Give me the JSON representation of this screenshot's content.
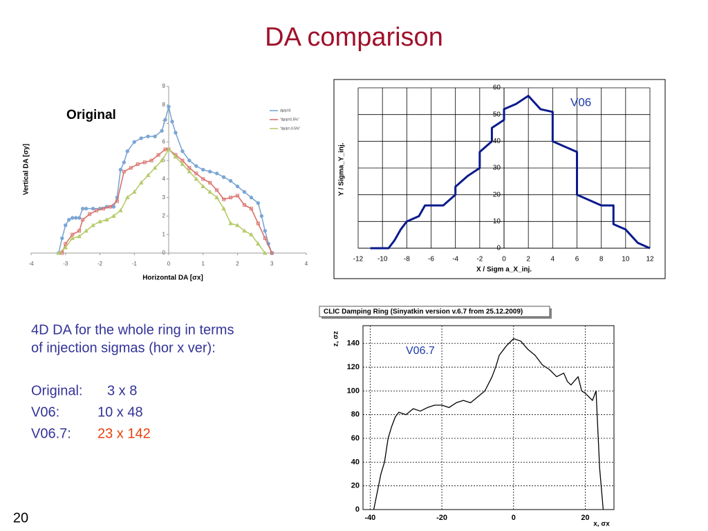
{
  "title": "DA comparison",
  "label_original": "Original",
  "text": {
    "intro": [
      "4D DA for the whole ring in terms",
      "of injection sigmas (hor x ver):"
    ],
    "results": [
      {
        "label": "Original:",
        "value": "3 x 8"
      },
      {
        "label": "V06:",
        "value": "10 x 48"
      },
      {
        "label": "V06.7:",
        "value": "23 x 142",
        "color": "#e8400c"
      }
    ]
  },
  "page_number": "20",
  "chart_data": [
    {
      "type": "line",
      "xlabel": "Horizontal DA [σx]",
      "ylabel": "Vertical DA [σy]",
      "xlim": [
        -4,
        4
      ],
      "ylim": [
        0,
        9
      ],
      "xticks": [
        -4,
        -3,
        -2,
        -1,
        0,
        1,
        2,
        3,
        4
      ],
      "yticks": [
        0,
        1,
        2,
        3,
        4,
        5,
        6,
        7,
        8,
        9
      ],
      "grid": false,
      "series": [
        {
          "name": "dp/p=0",
          "color": "#7ba6d4",
          "marker": "circle",
          "x": [
            -3.2,
            -3.1,
            -3.0,
            -2.9,
            -2.8,
            -2.7,
            -2.6,
            -2.5,
            -2.4,
            -2.2,
            -2.0,
            -1.8,
            -1.6,
            -1.5,
            -1.4,
            -1.3,
            -1.2,
            -1.0,
            -0.8,
            -0.6,
            -0.4,
            -0.2,
            -0.1,
            0,
            0.1,
            0.2,
            0.4,
            0.6,
            0.8,
            1.0,
            1.2,
            1.4,
            1.6,
            1.8,
            2.0,
            2.2,
            2.4,
            2.6,
            2.7,
            2.8,
            2.9,
            3.0
          ],
          "values": [
            0,
            0.8,
            1.5,
            1.8,
            1.9,
            1.9,
            1.9,
            2.4,
            2.4,
            2.4,
            2.4,
            2.5,
            2.5,
            3.0,
            4.5,
            4.9,
            5.5,
            6.0,
            6.2,
            6.3,
            6.3,
            6.6,
            7.2,
            7.9,
            7.1,
            6.5,
            5.5,
            5.0,
            4.7,
            4.5,
            4.4,
            4.3,
            4.1,
            3.9,
            3.6,
            3.3,
            3.0,
            2.7,
            2.0,
            1.2,
            0.5,
            0
          ]
        },
        {
          "name": "\"dp/p=0.5%\"",
          "color": "#d9706a",
          "marker": "square",
          "x": [
            -3.1,
            -3.0,
            -2.8,
            -2.6,
            -2.5,
            -2.3,
            -2.1,
            -1.9,
            -1.7,
            -1.5,
            -1.3,
            -1.1,
            -0.9,
            -0.7,
            -0.5,
            -0.3,
            -0.1,
            0,
            0.2,
            0.4,
            0.6,
            0.8,
            1.0,
            1.2,
            1.4,
            1.6,
            1.8,
            2.0,
            2.2,
            2.4,
            2.6,
            2.8,
            3.0
          ],
          "values": [
            0,
            0.5,
            1.0,
            1.2,
            1.8,
            2.1,
            2.3,
            2.4,
            2.5,
            2.8,
            4.4,
            4.6,
            4.8,
            4.9,
            5.0,
            5.3,
            5.6,
            5.6,
            5.3,
            5.0,
            4.6,
            4.3,
            4.0,
            3.8,
            3.4,
            2.9,
            3.0,
            3.1,
            2.6,
            2.4,
            1.6,
            0.8,
            0
          ]
        },
        {
          "name": "\"dp/p=-0.5%\"",
          "color": "#b5cc6a",
          "marker": "triangle",
          "x": [
            -3.2,
            -3.0,
            -2.8,
            -2.6,
            -2.4,
            -2.2,
            -2.0,
            -1.8,
            -1.6,
            -1.4,
            -1.2,
            -1.0,
            -0.8,
            -0.6,
            -0.4,
            -0.2,
            0,
            0.2,
            0.4,
            0.6,
            0.8,
            1.0,
            1.2,
            1.4,
            1.6,
            1.8,
            2.0,
            2.2,
            2.4,
            2.6,
            2.8
          ],
          "values": [
            0,
            0.3,
            0.8,
            0.9,
            1.2,
            1.5,
            1.7,
            1.8,
            2.0,
            2.3,
            3.0,
            3.3,
            3.8,
            4.2,
            4.6,
            5.0,
            5.6,
            5.2,
            4.8,
            4.4,
            4.0,
            3.6,
            3.3,
            3.0,
            2.4,
            1.6,
            1.5,
            1.2,
            1.0,
            0.5,
            0
          ]
        }
      ]
    },
    {
      "type": "line",
      "xlabel": "X / Sigm a_X_inj.",
      "ylabel": "Y / Sigma_Y_inj.",
      "annotation": "V06",
      "xlim": [
        -12,
        12
      ],
      "ylim": [
        0,
        60
      ],
      "xticks": [
        -12,
        -10,
        -8,
        -6,
        -4,
        -2,
        0,
        2,
        4,
        6,
        8,
        10,
        12
      ],
      "yticks": [
        0,
        10,
        20,
        30,
        40,
        50,
        60
      ],
      "grid": true,
      "series": [
        {
          "name": "V06",
          "color": "#0a1a8c",
          "x": [
            -11,
            -9.5,
            -9,
            -8.5,
            -8,
            -7,
            -6.5,
            -5,
            -4,
            -4,
            -3,
            -2,
            -2,
            -1,
            -1,
            0,
            0,
            1,
            2,
            3,
            4,
            4,
            5,
            6,
            6,
            8,
            9,
            9,
            10,
            11,
            12
          ],
          "values": [
            0,
            0,
            3,
            7,
            10,
            12,
            16,
            16,
            20,
            23,
            27,
            30,
            36,
            40,
            45,
            48,
            52,
            54,
            57,
            52,
            51,
            40,
            38,
            36,
            20,
            16,
            16,
            9,
            7,
            2,
            0
          ]
        }
      ]
    },
    {
      "type": "line",
      "title": "CLIC Damping Ring (Sinyatkin version v.6.7 from 25.12.2009)",
      "xlabel": "x, σx",
      "ylabel": "z, σz",
      "annotation": "V06.7",
      "xlim": [
        -42,
        28
      ],
      "ylim": [
        0,
        155
      ],
      "xticks": [
        -40,
        -20,
        0,
        20
      ],
      "yticks": [
        0,
        20,
        40,
        60,
        80,
        100,
        120,
        140
      ],
      "grid": true,
      "grid_style": "dashed",
      "series": [
        {
          "name": "V06.7",
          "color": "#000000",
          "x": [
            -39,
            -38,
            -37,
            -36,
            -35,
            -34,
            -33,
            -32,
            -30,
            -28,
            -26,
            -24,
            -22,
            -20,
            -18,
            -16,
            -14,
            -12,
            -10,
            -8,
            -6,
            -5,
            -4,
            -2,
            0,
            2,
            4,
            6,
            8,
            10,
            12,
            14,
            15,
            16,
            18,
            19,
            20,
            21,
            22,
            23,
            24,
            25
          ],
          "values": [
            0,
            15,
            30,
            40,
            60,
            70,
            78,
            82,
            80,
            85,
            83,
            86,
            88,
            88,
            86,
            90,
            92,
            90,
            95,
            100,
            112,
            120,
            130,
            138,
            144,
            142,
            135,
            130,
            122,
            118,
            112,
            115,
            108,
            105,
            112,
            100,
            98,
            95,
            92,
            100,
            35,
            0
          ]
        }
      ]
    }
  ]
}
